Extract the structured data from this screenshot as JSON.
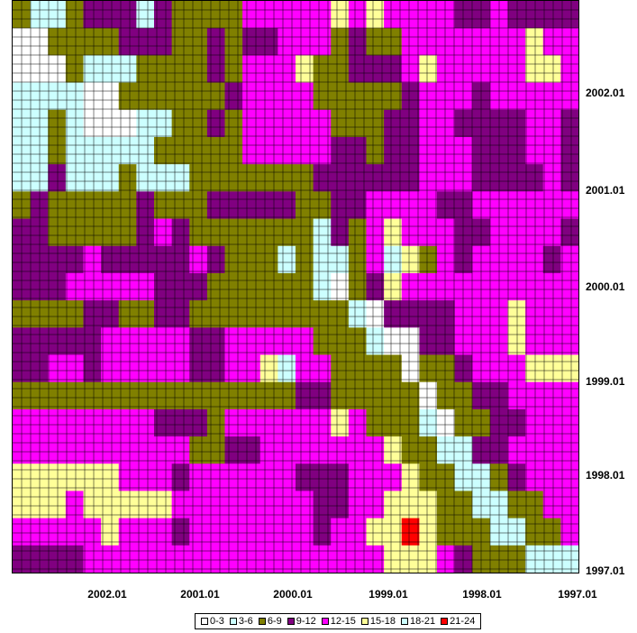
{
  "chart_data": {
    "type": "heatmap",
    "title": "",
    "xlabel": "",
    "ylabel": "",
    "x_ticks": [
      "2002.01",
      "2001.01",
      "2000.01",
      "1999.01",
      "1998.01",
      "1997.01"
    ],
    "y_ticks": [
      "2002.01",
      "2001.01",
      "2000.01",
      "1999.01",
      "1998.01",
      "1997.01"
    ],
    "legend_position": "bottom",
    "grid": true,
    "legend": [
      {
        "label": "0-3",
        "color": "#ffffff"
      },
      {
        "label": "3-6",
        "color": "#ccffff"
      },
      {
        "label": "6-9",
        "color": "#808000"
      },
      {
        "label": "9-12",
        "color": "#800080"
      },
      {
        "label": "12-15",
        "color": "#ff00ff"
      },
      {
        "label": "15-18",
        "color": "#ffff99"
      },
      {
        "label": "18-21",
        "color": "#ccffff"
      },
      {
        "label": "21-24",
        "color": "#ff0000"
      }
    ],
    "grid_rows": [
      "CBBCDDDBDCCCCEEEEEFEFEEEEDDEDDDD",
      "AACCCCDDDCCDCDDEEECDCCEEEEEEEFEE",
      "AAACBBBCCCCDCEEEFCCDDDEFEEEEEFFE",
      "BBBBAACCCCCCDEEEECCCCCDEEEDEEEEE",
      "BBCBAAABBCCDCEEEEECCCDDEEDDDDEED",
      "BBCBBBBBCCCCCEEEEEDDCDDEEEDDDEED",
      "BBDBBBCBBBCCCCCCCDDDDDDEEEDDDDED",
      "CDCCCCCDCCCDDDDDCCDDEEEEDDEEEEEE",
      "DDCCCCCDEDCCCCCCCBDCEFEEEDDEEEED",
      "DDDDEDDDDDEDCCCBCBBCEGFCEDEEEEDE",
      "DDDEEEEEDDDCCCCCCBACDFEEEEEEEEEE",
      "CCCCDDCCDDCCCCCCCCCBADDDDEEEFEEE",
      "DDDDDEEEEEDDEEEEECCCBAADDEEEFEEE",
      "DDEEDEEEEEDDEEFGEECCCCACCDEEEFFF",
      "CCCCCCCCCCCCCCCCDDCCCCCACCDDEEEE",
      "EEEEEEEEDDDCEEEEEEFECCCBACCDDEEE",
      "EEEEEEEEEECCDDEEEEEEEFCCBBDDEEEE",
      "FFFFFFEEEDEEEEEEDDDEEEFCCBBCDEEE",
      "FFFEFFFFFEEEEEEEEDDEEFFFCCBBCCEE",
      "EEEEEFEEEDEEEEEEEDEEFFHFCCCBBCCE",
      "DDDDEEEEEEEEEEEEEEEEEFFFEDCCCBBB"
    ]
  }
}
